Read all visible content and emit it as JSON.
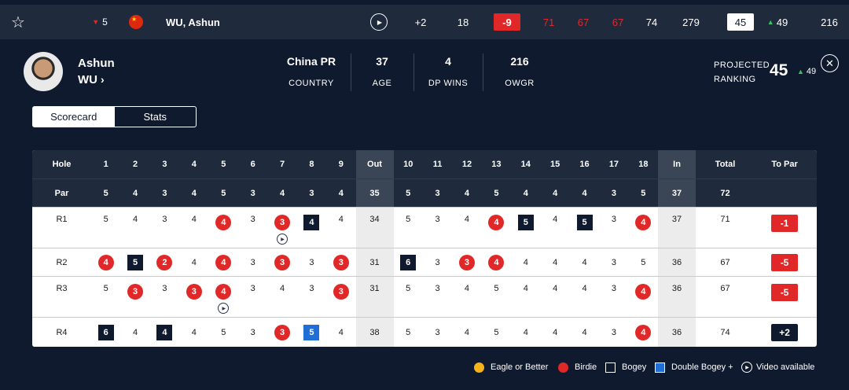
{
  "topbar": {
    "star_icon": "☆",
    "move_value": "5",
    "move_direction": "down",
    "player_name": "WU, Ashun",
    "play_icon": "▶",
    "score_today": "+2",
    "thru": "18",
    "to_par": "-9",
    "rounds": [
      "71",
      "67",
      "67",
      "74"
    ],
    "total": "279",
    "position": "45",
    "pos_move": "49",
    "points": "216"
  },
  "player": {
    "first_name": "Ashun",
    "last_name": "WU",
    "chevron": "›",
    "stats": [
      {
        "value": "China PR",
        "label": "COUNTRY"
      },
      {
        "value": "37",
        "label": "AGE"
      },
      {
        "value": "4",
        "label": "DP WINS"
      },
      {
        "value": "216",
        "label": "OWGR"
      }
    ],
    "projected_line1": "PROJECTED",
    "projected_line2": "RANKING",
    "projected_value": "45",
    "projected_move": "49",
    "close_icon": "✕"
  },
  "tabs": [
    {
      "label": "Scorecard",
      "active": true
    },
    {
      "label": "Stats",
      "active": false
    }
  ],
  "scorecard": {
    "header": {
      "label": "Hole",
      "front": [
        "1",
        "2",
        "3",
        "4",
        "5",
        "6",
        "7",
        "8",
        "9"
      ],
      "out": "Out",
      "back": [
        "10",
        "11",
        "12",
        "13",
        "14",
        "15",
        "16",
        "17",
        "18"
      ],
      "in": "In",
      "total": "Total",
      "to_par": "To Par"
    },
    "par": {
      "label": "Par",
      "front": [
        "5",
        "4",
        "3",
        "4",
        "5",
        "3",
        "4",
        "3",
        "4"
      ],
      "out": "35",
      "back": [
        "5",
        "3",
        "4",
        "5",
        "4",
        "4",
        "4",
        "3",
        "5"
      ],
      "in": "37",
      "total": "72",
      "to_par": ""
    },
    "rounds": [
      {
        "label": "R1",
        "front": [
          "5",
          "4",
          "3",
          "4",
          "4",
          "3",
          "3",
          "4",
          "4"
        ],
        "front_types": [
          "",
          "",
          "",
          "",
          "b",
          "",
          "b",
          "g",
          ""
        ],
        "front_video": [
          false,
          false,
          false,
          false,
          false,
          false,
          true,
          false,
          false
        ],
        "out": "34",
        "back": [
          "5",
          "3",
          "4",
          "4",
          "5",
          "4",
          "5",
          "3",
          "4"
        ],
        "back_types": [
          "",
          "",
          "",
          "b",
          "g",
          "",
          "g",
          "",
          "b"
        ],
        "back_video": [
          false,
          false,
          false,
          false,
          false,
          false,
          false,
          false,
          false
        ],
        "in": "37",
        "total": "71",
        "to_par": "-1",
        "to_par_type": "under"
      },
      {
        "label": "R2",
        "front": [
          "4",
          "5",
          "2",
          "4",
          "4",
          "3",
          "3",
          "3",
          "3"
        ],
        "front_types": [
          "b",
          "g",
          "b",
          "",
          "b",
          "",
          "b",
          "",
          "b"
        ],
        "front_video": [
          false,
          false,
          false,
          false,
          false,
          false,
          false,
          false,
          false
        ],
        "out": "31",
        "back": [
          "6",
          "3",
          "3",
          "4",
          "4",
          "4",
          "4",
          "3",
          "5"
        ],
        "back_types": [
          "g",
          "",
          "b",
          "b",
          "",
          "",
          "",
          "",
          ""
        ],
        "back_video": [
          false,
          false,
          false,
          false,
          false,
          false,
          false,
          false,
          false
        ],
        "in": "36",
        "total": "67",
        "to_par": "-5",
        "to_par_type": "under"
      },
      {
        "label": "R3",
        "front": [
          "5",
          "3",
          "3",
          "3",
          "4",
          "3",
          "4",
          "3",
          "3"
        ],
        "front_types": [
          "",
          "b",
          "",
          "b",
          "b",
          "",
          "",
          "",
          "b"
        ],
        "front_video": [
          false,
          false,
          false,
          false,
          true,
          false,
          false,
          false,
          false
        ],
        "out": "31",
        "back": [
          "5",
          "3",
          "4",
          "5",
          "4",
          "4",
          "4",
          "3",
          "4"
        ],
        "back_types": [
          "",
          "",
          "",
          "",
          "",
          "",
          "",
          "",
          "b"
        ],
        "back_video": [
          false,
          false,
          false,
          false,
          false,
          false,
          false,
          false,
          false
        ],
        "in": "36",
        "total": "67",
        "to_par": "-5",
        "to_par_type": "under"
      },
      {
        "label": "R4",
        "front": [
          "6",
          "4",
          "4",
          "4",
          "5",
          "3",
          "3",
          "5",
          "4"
        ],
        "front_types": [
          "g",
          "",
          "g",
          "",
          "",
          "",
          "b",
          "d",
          ""
        ],
        "front_video": [
          false,
          false,
          false,
          false,
          false,
          false,
          false,
          false,
          false
        ],
        "out": "38",
        "back": [
          "5",
          "3",
          "4",
          "5",
          "4",
          "4",
          "4",
          "3",
          "4"
        ],
        "back_types": [
          "",
          "",
          "",
          "",
          "",
          "",
          "",
          "",
          "b"
        ],
        "back_video": [
          false,
          false,
          false,
          false,
          false,
          false,
          false,
          false,
          false
        ],
        "in": "36",
        "total": "74",
        "to_par": "+2",
        "to_par_type": "over"
      }
    ]
  },
  "legend": {
    "eagle": "Eagle or Better",
    "birdie": "Birdie",
    "bogey": "Bogey",
    "double_bogey": "Double Bogey +",
    "video": "Video available",
    "colors": {
      "eagle": "#f6b21b",
      "birdie": "#e02828",
      "bogey": "#0f1a2e",
      "double_bogey": "#1f6fd6"
    }
  }
}
